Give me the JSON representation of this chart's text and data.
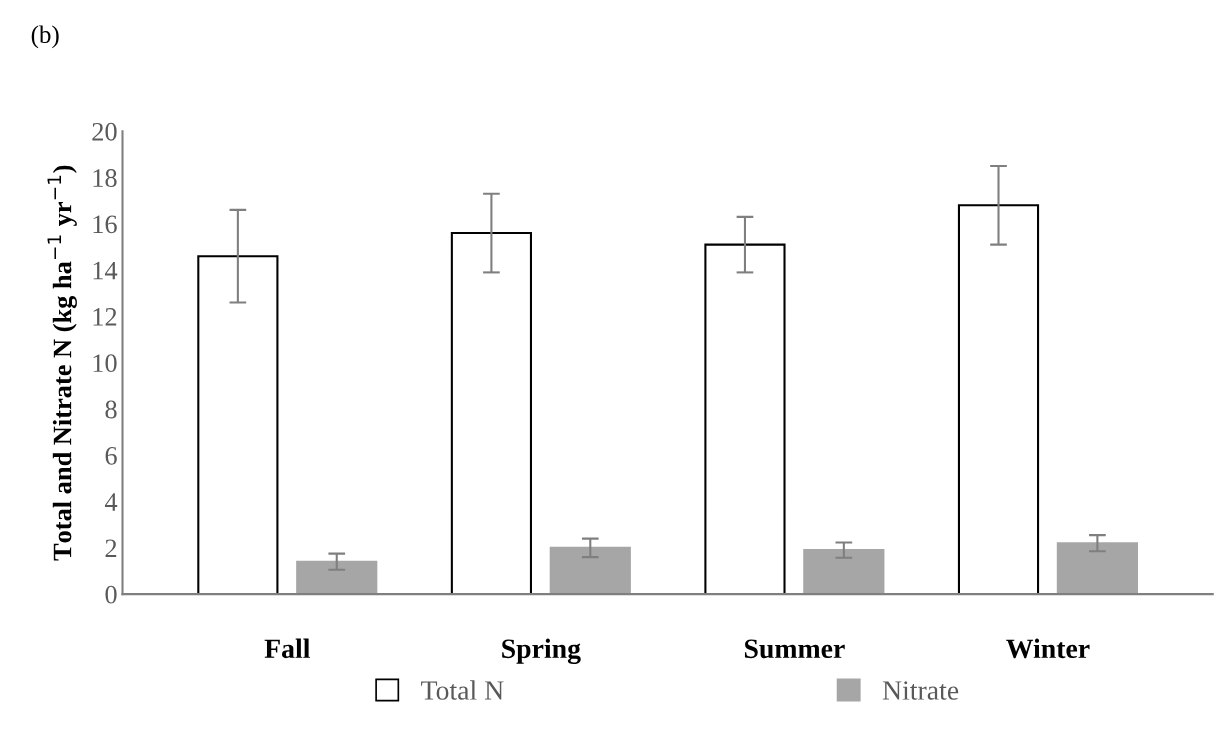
{
  "chart_data": {
    "type": "bar",
    "title": "(b)",
    "ylabel": "Total and Nitrate N (kg ha$^{−1}$ yr$^{−1}$)",
    "categories": [
      "Fall",
      "Spring",
      "Summer",
      "Winter"
    ],
    "series": [
      {
        "name": "Total N",
        "color": "#ffffff",
        "values": [
          14.6,
          15.6,
          15.1,
          16.8
        ],
        "errors": [
          2.0,
          1.7,
          1.2,
          1.7
        ]
      },
      {
        "name": "Nitrate",
        "color": "#a6a6a6",
        "values": [
          1.4,
          2.0,
          1.9,
          2.2
        ],
        "errors": [
          0.35,
          0.4,
          0.33,
          0.35
        ]
      }
    ],
    "ylim": [
      0,
      20
    ],
    "yticks": [
      0,
      2,
      4,
      6,
      8,
      10,
      12,
      14,
      16,
      18,
      20
    ],
    "grid": false,
    "legend": "bottom"
  }
}
